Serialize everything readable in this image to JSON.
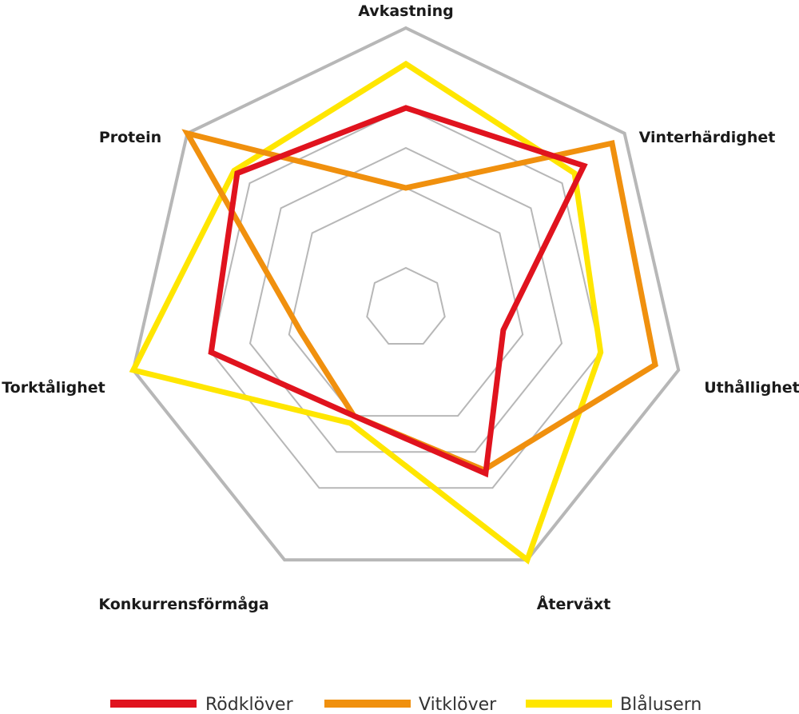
{
  "chart_data": {
    "type": "radar",
    "title": "",
    "axes": [
      "Avkastning",
      "Vinterhärdighet",
      "Uthållighet",
      "Återväxt",
      "Konkurrensförmåga",
      "Torktålighet",
      "Protein"
    ],
    "range": [
      0,
      7
    ],
    "rings": 5,
    "legend_position": "bottom",
    "series": [
      {
        "name": "Rödklöver",
        "color": "#e0131e",
        "values": [
          5.0,
          5.7,
          2.5,
          4.6,
          3.0,
          5.0,
          5.4
        ]
      },
      {
        "name": "Vitklöver",
        "color": "#f0900e",
        "values": [
          3.0,
          6.6,
          6.4,
          4.5,
          3.0,
          2.7,
          7.0
        ]
      },
      {
        "name": "Blålusern",
        "color": "#ffe600",
        "values": [
          6.1,
          5.4,
          5.0,
          7.0,
          3.2,
          7.0,
          5.5
        ]
      }
    ]
  }
}
